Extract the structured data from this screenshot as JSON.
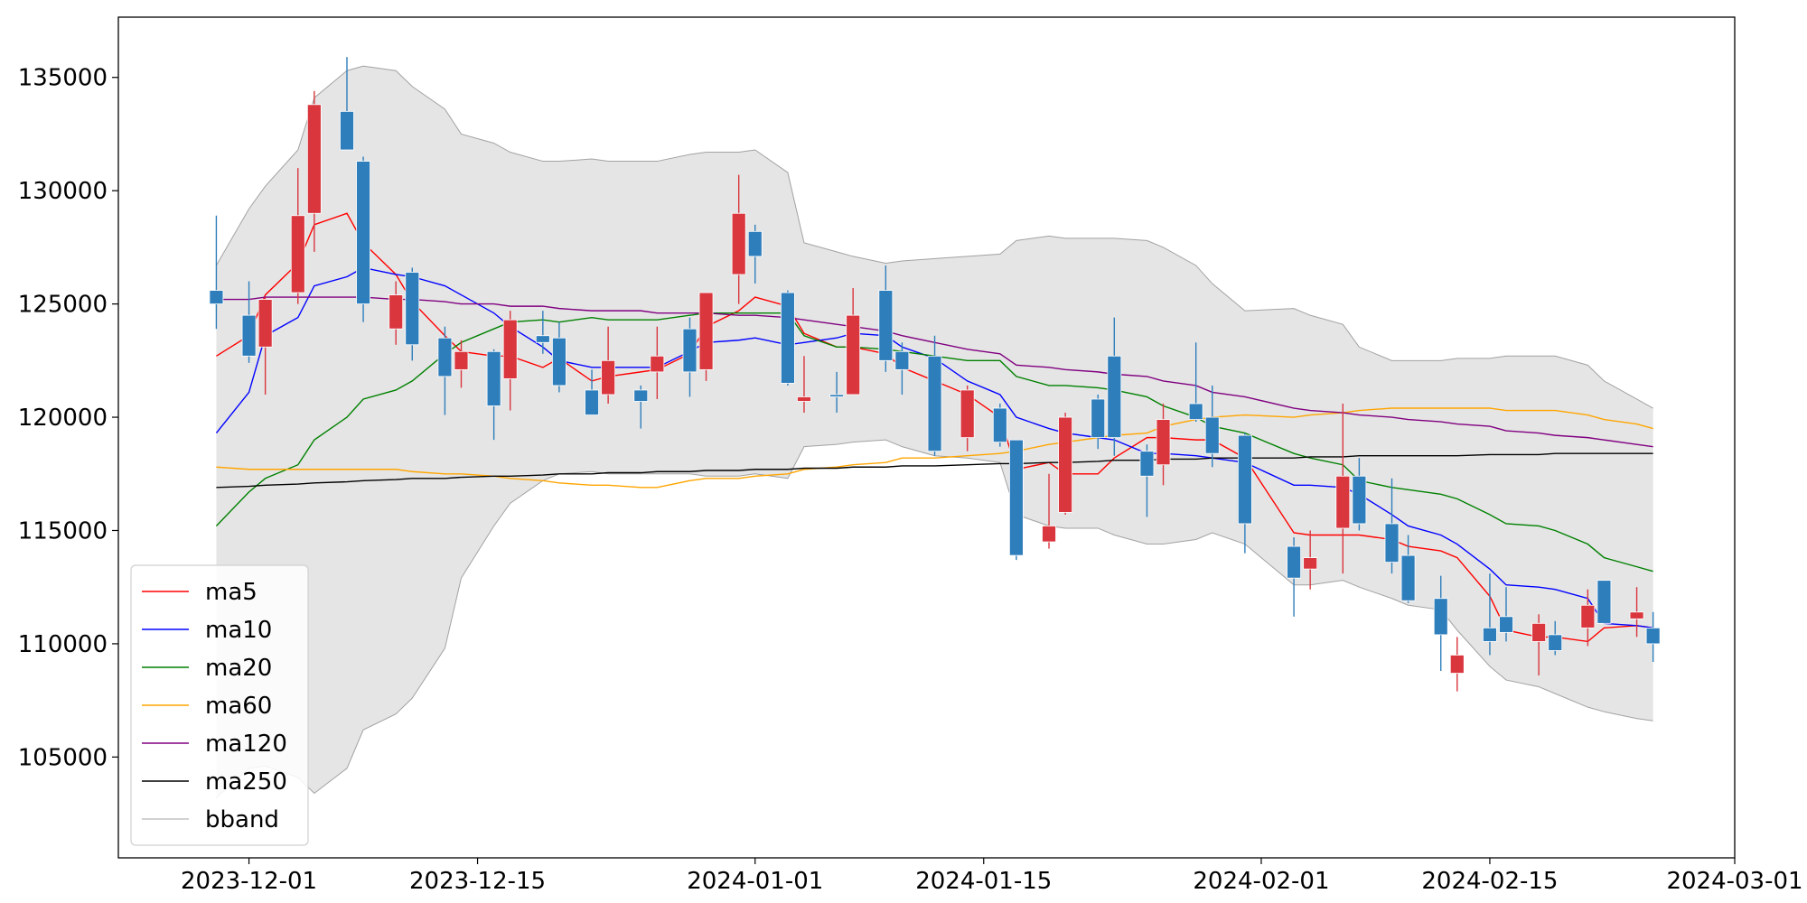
{
  "chart_data": {
    "type": "candlestick",
    "x": [
      "2023-11-29",
      "2023-12-01",
      "2023-12-02",
      "2023-12-04",
      "2023-12-05",
      "2023-12-07",
      "2023-12-08",
      "2023-12-10",
      "2023-12-11",
      "2023-12-13",
      "2023-12-14",
      "2023-12-16",
      "2023-12-17",
      "2023-12-19",
      "2023-12-20",
      "2023-12-22",
      "2023-12-23",
      "2023-12-25",
      "2023-12-26",
      "2023-12-28",
      "2023-12-29",
      "2023-12-31",
      "2024-01-01",
      "2024-01-03",
      "2024-01-04",
      "2024-01-06",
      "2024-01-07",
      "2024-01-09",
      "2024-01-10",
      "2024-01-12",
      "2024-01-14",
      "2024-01-16",
      "2024-01-17",
      "2024-01-19",
      "2024-01-20",
      "2024-01-22",
      "2024-01-23",
      "2024-01-25",
      "2024-01-26",
      "2024-01-28",
      "2024-01-29",
      "2024-01-31",
      "2024-02-03",
      "2024-02-04",
      "2024-02-06",
      "2024-02-07",
      "2024-02-09",
      "2024-02-10",
      "2024-02-12",
      "2024-02-13",
      "2024-02-15",
      "2024-02-16",
      "2024-02-18",
      "2024-02-19",
      "2024-02-21",
      "2024-02-22",
      "2024-02-24",
      "2024-02-25"
    ],
    "open": [
      125600,
      124500,
      123100,
      125500,
      129000,
      133500,
      131300,
      123900,
      126400,
      123500,
      122100,
      122900,
      121700,
      123600,
      123500,
      121200,
      121000,
      121200,
      122000,
      123900,
      122100,
      126300,
      128200,
      125500,
      120700,
      121000,
      121000,
      125600,
      122900,
      122700,
      119100,
      120400,
      119000,
      114500,
      115800,
      120800,
      122700,
      118500,
      117900,
      120600,
      120000,
      119200,
      114300,
      113300,
      115100,
      117400,
      115300,
      113900,
      112000,
      108700,
      110700,
      111200,
      110100,
      110400,
      110700,
      112800,
      111100,
      110700
    ],
    "high": [
      128900,
      126000,
      125300,
      131000,
      134400,
      135900,
      131500,
      126000,
      126600,
      124000,
      123400,
      123000,
      124700,
      124700,
      124200,
      122100,
      124000,
      121400,
      124000,
      124400,
      125500,
      130700,
      128500,
      125600,
      122700,
      122000,
      125700,
      126700,
      123300,
      123600,
      121400,
      120600,
      119000,
      117500,
      120200,
      121000,
      124400,
      118800,
      120600,
      123300,
      121400,
      119300,
      114700,
      115000,
      120600,
      118200,
      117300,
      114800,
      113000,
      110300,
      113100,
      112500,
      111300,
      111000,
      112400,
      112800,
      112500,
      111400
    ],
    "low": [
      123900,
      122400,
      121000,
      125000,
      127300,
      131800,
      124200,
      123200,
      122500,
      120100,
      121300,
      119000,
      120300,
      122800,
      121100,
      120100,
      120600,
      119500,
      120800,
      120900,
      121600,
      125000,
      125900,
      121400,
      120200,
      120200,
      121000,
      122000,
      121000,
      118300,
      118500,
      118700,
      113700,
      114200,
      115700,
      118600,
      118300,
      115600,
      117000,
      119800,
      117800,
      114000,
      111200,
      112400,
      113100,
      115000,
      113100,
      111800,
      108800,
      107900,
      109500,
      110100,
      108600,
      109500,
      109900,
      110900,
      110300,
      109200
    ],
    "close": [
      125000,
      122700,
      125200,
      128900,
      133800,
      131800,
      125000,
      125400,
      123200,
      121800,
      122900,
      120500,
      124300,
      123300,
      121400,
      120100,
      122500,
      120700,
      122700,
      122000,
      125500,
      129000,
      127100,
      121500,
      120900,
      120900,
      124500,
      122500,
      122100,
      118500,
      121200,
      118900,
      113900,
      115200,
      120000,
      119100,
      119100,
      117400,
      119900,
      119900,
      118400,
      115300,
      112900,
      113800,
      117400,
      115300,
      113600,
      111900,
      110400,
      109500,
      110100,
      110500,
      110900,
      109700,
      111700,
      110900,
      111400,
      110000
    ],
    "up_color": "#d9363e",
    "down_color": "#2e7ebc",
    "series": [
      {
        "name": "ma5",
        "color": "red",
        "values": [
          122700,
          123600,
          125400,
          126800,
          128500,
          129000,
          127700,
          126300,
          125100,
          123600,
          122900,
          122700,
          122700,
          122200,
          122600,
          121600,
          121800,
          122000,
          122100,
          122800,
          124000,
          124700,
          125300,
          124900,
          123700,
          123100,
          123100,
          122800,
          122200,
          121600,
          121000,
          120000,
          117700,
          118000,
          117500,
          117500,
          118200,
          119100,
          119100,
          119000,
          119000,
          118200,
          114900,
          114800,
          114800,
          114800,
          114600,
          114300,
          114100,
          113800,
          112100,
          110600,
          110300,
          110300,
          110100,
          110700,
          110800,
          110700
        ]
      },
      {
        "name": "ma10",
        "color": "blue",
        "values": [
          119300,
          121100,
          123600,
          124400,
          125800,
          126200,
          126600,
          126300,
          126200,
          125800,
          125400,
          124600,
          124000,
          123100,
          122500,
          122200,
          122200,
          122200,
          122200,
          122900,
          123300,
          123400,
          123500,
          123200,
          123300,
          123500,
          123700,
          123600,
          123100,
          122600,
          121600,
          121000,
          120000,
          119500,
          119300,
          119100,
          119000,
          118400,
          118400,
          118300,
          118200,
          118000,
          117000,
          117000,
          116900,
          116600,
          115700,
          115200,
          114800,
          114400,
          113300,
          112600,
          112500,
          112400,
          112000,
          110900,
          110800,
          110700
        ]
      },
      {
        "name": "ma20",
        "color": "green",
        "values": [
          115200,
          116700,
          117300,
          117900,
          119000,
          120000,
          120800,
          121200,
          121600,
          122800,
          123300,
          123900,
          124200,
          124300,
          124200,
          124400,
          124300,
          124300,
          124300,
          124500,
          124600,
          124600,
          124600,
          124600,
          123600,
          123100,
          123100,
          123000,
          122900,
          122700,
          122500,
          122500,
          121800,
          121400,
          121400,
          121300,
          121200,
          120900,
          120500,
          120000,
          119600,
          119300,
          118400,
          118200,
          117900,
          117200,
          116900,
          116800,
          116600,
          116400,
          115700,
          115300,
          115200,
          115000,
          114400,
          113800,
          113400,
          113200
        ]
      },
      {
        "name": "ma60",
        "color": "orange",
        "values": [
          117800,
          117700,
          117700,
          117700,
          117700,
          117700,
          117700,
          117700,
          117600,
          117500,
          117500,
          117400,
          117300,
          117200,
          117100,
          117000,
          117000,
          116900,
          116900,
          117200,
          117300,
          117300,
          117400,
          117500,
          117700,
          117800,
          117900,
          118000,
          118200,
          118200,
          118300,
          118400,
          118500,
          118800,
          118900,
          119100,
          119200,
          119300,
          119600,
          119900,
          120000,
          120100,
          120000,
          120100,
          120200,
          120300,
          120400,
          120400,
          120400,
          120400,
          120400,
          120300,
          120300,
          120300,
          120100,
          119900,
          119700,
          119500
        ]
      },
      {
        "name": "ma120",
        "color": "purple",
        "values": [
          125200,
          125200,
          125300,
          125300,
          125300,
          125300,
          125300,
          125200,
          125200,
          125100,
          125000,
          125000,
          124900,
          124900,
          124800,
          124700,
          124700,
          124700,
          124600,
          124600,
          124600,
          124500,
          124500,
          124400,
          124300,
          124100,
          124000,
          123800,
          123600,
          123300,
          123000,
          122800,
          122300,
          122200,
          122100,
          122000,
          121900,
          121800,
          121600,
          121400,
          121100,
          120900,
          120400,
          120300,
          120200,
          120100,
          120000,
          119900,
          119800,
          119700,
          119600,
          119400,
          119300,
          119200,
          119100,
          119000,
          118800,
          118700
        ]
      },
      {
        "name": "ma250",
        "color": "black",
        "values": [
          116900,
          116950,
          117000,
          117050,
          117100,
          117150,
          117200,
          117250,
          117300,
          117300,
          117350,
          117400,
          117400,
          117450,
          117500,
          117500,
          117550,
          117550,
          117600,
          117600,
          117650,
          117650,
          117700,
          117700,
          117750,
          117750,
          117800,
          117800,
          117850,
          117850,
          117900,
          117950,
          117950,
          118000,
          118000,
          118050,
          118100,
          118100,
          118150,
          118150,
          118200,
          118200,
          118200,
          118250,
          118250,
          118300,
          118300,
          118300,
          118300,
          118300,
          118350,
          118350,
          118350,
          118400,
          118400,
          118400,
          118400,
          118400
        ]
      }
    ],
    "bband": {
      "name": "bband",
      "color": "gray",
      "fill": "#e5e5e5",
      "upper": [
        126700,
        129200,
        130200,
        131800,
        134100,
        135300,
        135500,
        135300,
        134600,
        133600,
        132500,
        132100,
        131700,
        131300,
        131300,
        131400,
        131300,
        131300,
        131300,
        131600,
        131700,
        131700,
        131800,
        130800,
        127700,
        127300,
        127100,
        126800,
        126900,
        127000,
        127100,
        127200,
        127800,
        128000,
        127900,
        127900,
        127900,
        127800,
        127500,
        126700,
        125900,
        124700,
        124800,
        124500,
        124100,
        123100,
        122500,
        122500,
        122500,
        122600,
        122600,
        122700,
        122700,
        122700,
        122300,
        121600,
        120800,
        120400
      ],
      "lower": [
        103200,
        104500,
        104600,
        104100,
        103400,
        104500,
        106200,
        106900,
        107600,
        109800,
        112900,
        115200,
        116200,
        117200,
        117500,
        117600,
        117500,
        117500,
        117500,
        117500,
        117400,
        117400,
        117500,
        117300,
        118700,
        118800,
        118900,
        119000,
        118700,
        118300,
        118200,
        118000,
        115700,
        115200,
        115100,
        115100,
        114800,
        114400,
        114400,
        114600,
        114900,
        114400,
        112600,
        112600,
        112800,
        112500,
        112000,
        111700,
        111500,
        110600,
        109000,
        108400,
        108100,
        107800,
        107200,
        107000,
        106700,
        106600
      ]
    },
    "xlim": [
      "2023-11-23",
      "2024-03-01"
    ],
    "ylim": [
      100550,
      137660
    ],
    "xticks": [
      "2023-12-01",
      "2023-12-15",
      "2024-01-01",
      "2024-01-15",
      "2024-02-01",
      "2024-02-15",
      "2024-03-01"
    ],
    "yticks": [
      105000,
      110000,
      115000,
      120000,
      125000,
      130000,
      135000
    ],
    "legend": "lower left"
  }
}
